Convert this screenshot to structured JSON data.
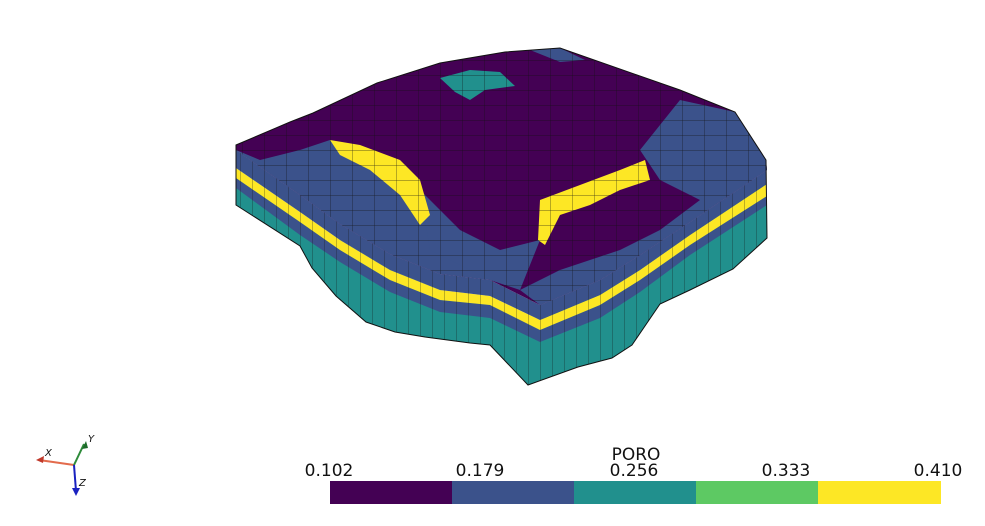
{
  "scalar_bar": {
    "title": "PORO",
    "ticks": [
      "0.102",
      "0.179",
      "0.256",
      "0.333",
      "0.410"
    ],
    "colors": [
      "#440154",
      "#3b528b",
      "#21908d",
      "#5dc963",
      "#fde725"
    ]
  },
  "axes": {
    "x_label": "X",
    "y_label": "Y",
    "z_label": "Z",
    "x_color": "#e36b4c",
    "y_color": "#2e8b3a",
    "z_color": "#1a22c0"
  },
  "model": {
    "layers": [
      "#3b528b",
      "#21908d",
      "#fde725",
      "#3b528b",
      "#21908d",
      "#21908d"
    ],
    "top_colors": [
      "#440154",
      "#3b528b",
      "#21908d",
      "#fde725"
    ]
  }
}
